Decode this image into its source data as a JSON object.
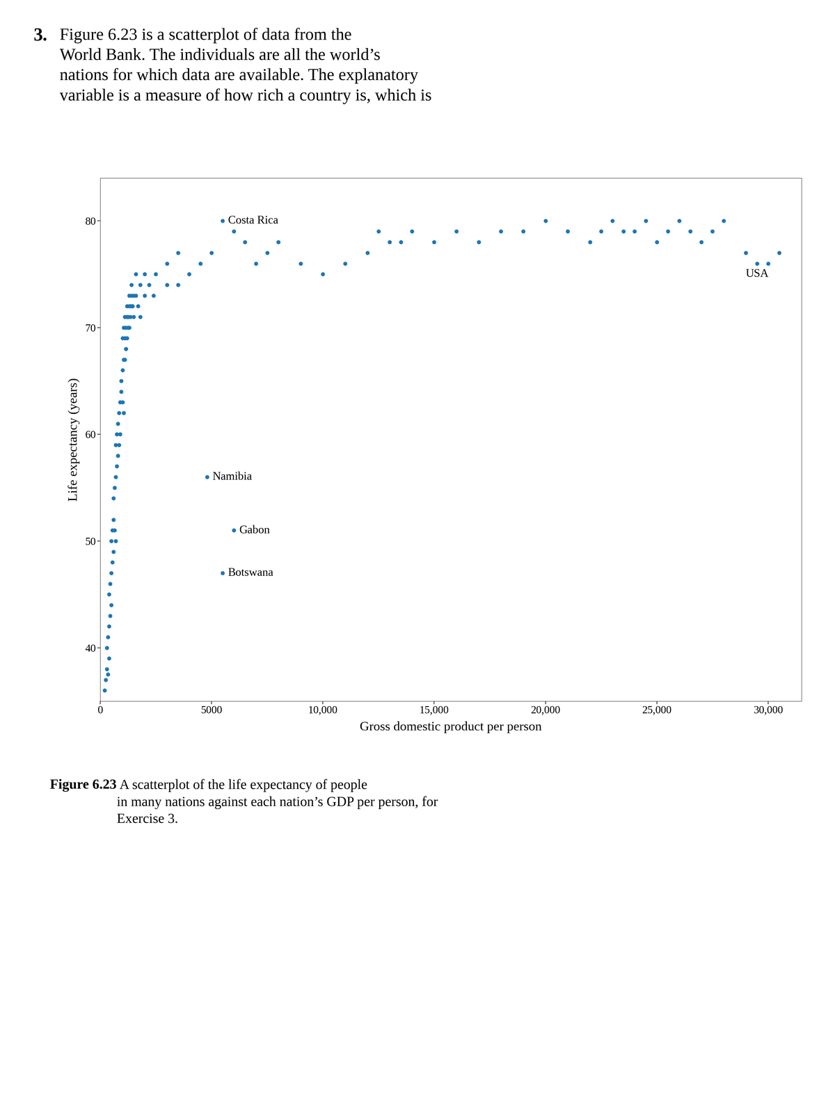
{
  "chart_data": {
    "type": "scatter",
    "xlabel": "Gross domestic product per person",
    "ylabel": "Life expectancy (years)",
    "xlim": [
      0,
      31500
    ],
    "ylim": [
      35,
      84
    ],
    "xticks": [
      0,
      5000,
      {
        "value": 10000,
        "label": "10,000"
      },
      {
        "value": 15000,
        "label": "15,000"
      },
      {
        "value": 20000,
        "label": "20,000"
      },
      {
        "value": 25000,
        "label": "25,000"
      },
      {
        "value": 30000,
        "label": "30,000"
      }
    ],
    "yticks": [
      40,
      50,
      60,
      70,
      80
    ],
    "x": [
      200,
      250,
      300,
      350,
      400,
      300,
      350,
      400,
      450,
      500,
      400,
      450,
      500,
      550,
      600,
      500,
      550,
      600,
      650,
      700,
      600,
      650,
      700,
      750,
      800,
      700,
      750,
      800,
      850,
      900,
      850,
      900,
      950,
      1000,
      1050,
      950,
      1000,
      1050,
      1100,
      1150,
      1000,
      1050,
      1100,
      1150,
      1200,
      1100,
      1150,
      1200,
      1250,
      1300,
      1200,
      1250,
      1300,
      1350,
      1400,
      1300,
      1350,
      1400,
      1450,
      1500,
      1400,
      1500,
      1600,
      1700,
      1800,
      1600,
      1800,
      2000,
      2200,
      2400,
      2000,
      2500,
      3000,
      3500,
      4000,
      4500,
      5000,
      3000,
      3500,
      5500,
      6000,
      6500,
      7000,
      7500,
      8000,
      9000,
      10000,
      11000,
      12000,
      12500,
      13000,
      13500,
      14000,
      15000,
      16000,
      17000,
      18000,
      19000,
      20000,
      21000,
      22000,
      22500,
      23000,
      23500,
      24000,
      24500,
      25000,
      25500,
      26000,
      26500,
      27000,
      27500,
      28000,
      29000,
      29500,
      30000,
      30500,
      4800,
      6000,
      5500
    ],
    "values": [
      36,
      37,
      38,
      37.5,
      39,
      40,
      41,
      42,
      43,
      44,
      45,
      46,
      47,
      48,
      49,
      50,
      51,
      52,
      51,
      50,
      54,
      55,
      56,
      57,
      58,
      59,
      60,
      61,
      59,
      60,
      62,
      63,
      64,
      63,
      62,
      65,
      66,
      67,
      67,
      68,
      69,
      70,
      69,
      68,
      69,
      71,
      70,
      71,
      70,
      70,
      72,
      71,
      72,
      71,
      72,
      73,
      72,
      73,
      72,
      71,
      74,
      73,
      73,
      72,
      71,
      75,
      74,
      73,
      74,
      73,
      75,
      75,
      74,
      74,
      75,
      76,
      77,
      76,
      77,
      80,
      79,
      78,
      76,
      77,
      78,
      76,
      75,
      76,
      77,
      79,
      78,
      78,
      79,
      78,
      79,
      78,
      79,
      79,
      80,
      79,
      78,
      79,
      80,
      79,
      79,
      80,
      78,
      79,
      80,
      79,
      78,
      79,
      80,
      77,
      76,
      76,
      77,
      56,
      51,
      47
    ],
    "annotations": [
      {
        "text": "3."
      },
      {
        "text": "Figure 6.23 is a scatterplot of data from the\nWorld Bank. The individuals are all the world’s\nnations for which data are available. The explanatory\nvariable is a measure of how rich a country is, which is"
      },
      {
        "text": "Figure 6.23"
      },
      {
        "text": " A scatterplot of the life expectancy of people\nin many nations against each nation’s GDP per person, for\nExercise 3."
      },
      {
        "x": 5500,
        "y": 80,
        "text": "Costa Rica"
      },
      {
        "x": 29500,
        "y": 76,
        "text": "USA"
      },
      {
        "x": 4800,
        "y": 56,
        "text": "Namibia"
      },
      {
        "x": 6000,
        "y": 51,
        "text": "Gabon"
      },
      {
        "x": 5500,
        "y": 47,
        "text": "Botswana"
      }
    ]
  }
}
